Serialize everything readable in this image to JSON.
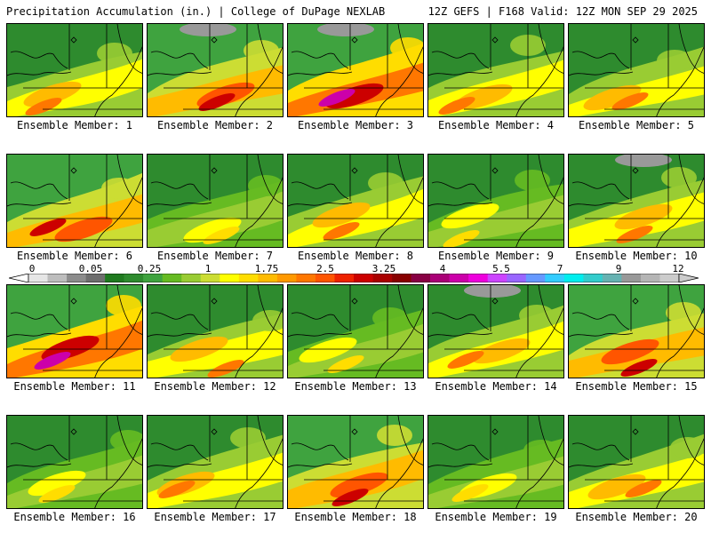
{
  "header": {
    "title_left": "Precipitation Accumulation (in.) | College of DuPage NEXLAB",
    "title_right": "12Z GEFS | F168 Valid: 12Z MON SEP 29 2025"
  },
  "colorbar": {
    "tick_labels": [
      "0",
      "0.05",
      "0.25",
      "1",
      "1.75",
      "2.5",
      "3.25",
      "4",
      "5.5",
      "7",
      "9",
      "12"
    ],
    "colors": [
      "#e6e6e6",
      "#bdbdbd",
      "#8c8c8c",
      "#6e6e6e",
      "#1f7a1f",
      "#2e8b2e",
      "#3fa33f",
      "#66bb22",
      "#99cc33",
      "#ccdd33",
      "#ffff00",
      "#ffdd00",
      "#ffbb00",
      "#ff9900",
      "#ff7700",
      "#ff5500",
      "#ee2200",
      "#cc0000",
      "#aa0000",
      "#880000",
      "#880044",
      "#aa0077",
      "#cc00aa",
      "#ee00dd",
      "#cc44ff",
      "#9966ff",
      "#6699ff",
      "#33ccff",
      "#00eeee",
      "#33cccc",
      "#66b2b2",
      "#999999",
      "#b5b5b5",
      "#cccccc"
    ]
  },
  "members": [
    {
      "label": "Ensemble Member: 1",
      "intensity": 2
    },
    {
      "label": "Ensemble Member: 2",
      "intensity": 3
    },
    {
      "label": "Ensemble Member: 3",
      "intensity": 4
    },
    {
      "label": "Ensemble Member: 4",
      "intensity": 2
    },
    {
      "label": "Ensemble Member: 5",
      "intensity": 2
    },
    {
      "label": "Ensemble Member: 6",
      "intensity": 3
    },
    {
      "label": "Ensemble Member: 7",
      "intensity": 1
    },
    {
      "label": "Ensemble Member: 8",
      "intensity": 2
    },
    {
      "label": "Ensemble Member: 9",
      "intensity": 1
    },
    {
      "label": "Ensemble Member: 10",
      "intensity": 2
    },
    {
      "label": "Ensemble Member: 11",
      "intensity": 4
    },
    {
      "label": "Ensemble Member: 12",
      "intensity": 2
    },
    {
      "label": "Ensemble Member: 13",
      "intensity": 1
    },
    {
      "label": "Ensemble Member: 14",
      "intensity": 2
    },
    {
      "label": "Ensemble Member: 15",
      "intensity": 3
    },
    {
      "label": "Ensemble Member: 16",
      "intensity": 1
    },
    {
      "label": "Ensemble Member: 17",
      "intensity": 2
    },
    {
      "label": "Ensemble Member: 18",
      "intensity": 3
    },
    {
      "label": "Ensemble Member: 19",
      "intensity": 1
    },
    {
      "label": "Ensemble Member: 20",
      "intensity": 2
    }
  ]
}
